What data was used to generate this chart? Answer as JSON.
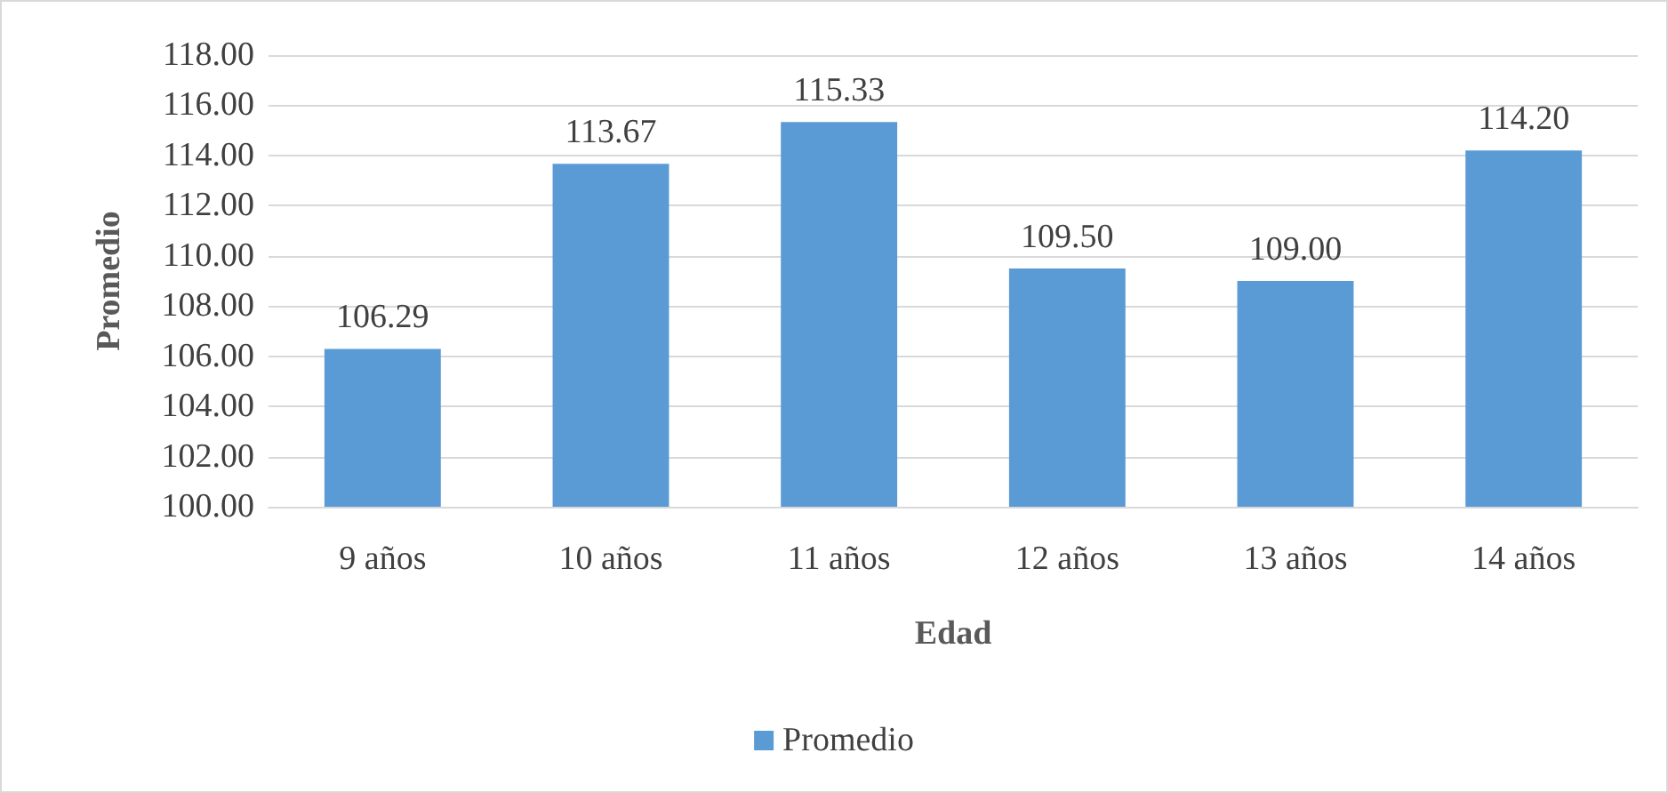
{
  "chart_data": {
    "type": "bar",
    "xlabel": "Edad",
    "ylabel": "Promedio",
    "categories": [
      "9 años",
      "10 años",
      "11 años",
      "12 años",
      "13 años",
      "14 años"
    ],
    "series": [
      {
        "name": "Promedio",
        "color": "#5b9bd5",
        "values": [
          106.29,
          113.67,
          115.33,
          109.5,
          109,
          114.2
        ],
        "value_labels": [
          "106.29",
          "113.67",
          "115.33",
          "109.50",
          "109.00",
          "114.20"
        ]
      }
    ],
    "ylim": [
      100,
      118
    ],
    "yticks": [
      {
        "value": 100,
        "label": "100.00"
      },
      {
        "value": 102,
        "label": "102.00"
      },
      {
        "value": 104,
        "label": "104.00"
      },
      {
        "value": 106,
        "label": "106.00"
      },
      {
        "value": 108,
        "label": "108.00"
      },
      {
        "value": 110,
        "label": "110.00"
      },
      {
        "value": 112,
        "label": "112.00"
      },
      {
        "value": 114,
        "label": "114.00"
      },
      {
        "value": 116,
        "label": "116.00"
      },
      {
        "value": 118,
        "label": "118.00"
      }
    ],
    "grid": "y",
    "legend": "bottom"
  }
}
